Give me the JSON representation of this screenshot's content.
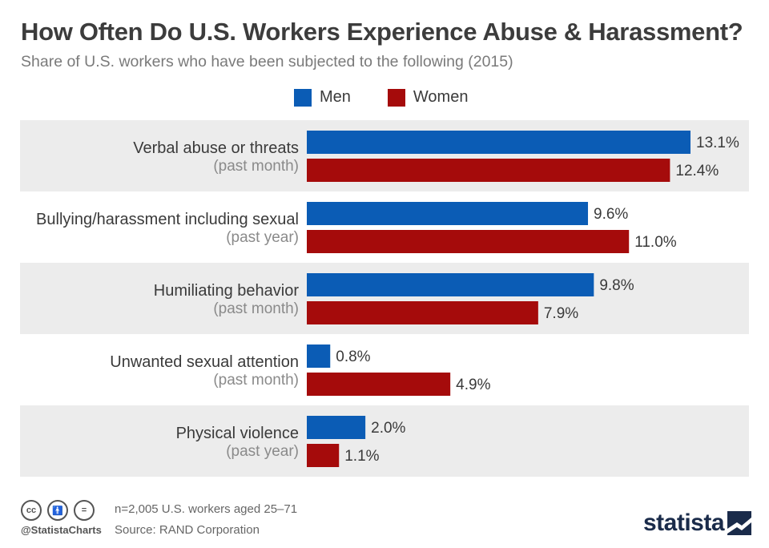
{
  "header": {
    "title": "How Often Do U.S. Workers Experience Abuse & Harassment?",
    "subtitle": "Share of U.S. workers who have been subjected to the following (2015)"
  },
  "legend": {
    "items": [
      {
        "label": "Men",
        "color": "#0b5cb5"
      },
      {
        "label": "Women",
        "color": "#a50b0b"
      }
    ]
  },
  "chart_data": {
    "type": "bar",
    "orientation": "horizontal",
    "title": "How Often Do U.S. Workers Experience Abuse & Harassment?",
    "subtitle": "Share of U.S. workers who have been subjected to the following (2015)",
    "categories": [
      {
        "label": "Verbal abuse or threats",
        "period": "(past month)"
      },
      {
        "label": "Bullying/harassment including sexual",
        "period": "(past year)"
      },
      {
        "label": "Humiliating behavior",
        "period": "(past month)"
      },
      {
        "label": "Unwanted sexual attention",
        "period": "(past month)"
      },
      {
        "label": "Physical violence",
        "period": "(past year)"
      }
    ],
    "series": [
      {
        "name": "Men",
        "color": "#0b5cb5",
        "values": [
          13.1,
          9.6,
          9.8,
          0.8,
          2.0
        ],
        "labels": [
          "13.1%",
          "9.6%",
          "9.8%",
          "0.8%",
          "2.0%"
        ]
      },
      {
        "name": "Women",
        "color": "#a50b0b",
        "values": [
          12.4,
          11.0,
          7.9,
          4.9,
          1.1
        ],
        "labels": [
          "12.4%",
          "11.0%",
          "7.9%",
          "4.9%",
          "1.1%"
        ]
      }
    ],
    "xlim": [
      0,
      13.1
    ],
    "unit": "%",
    "grid": false,
    "legend_position": "top"
  },
  "footer": {
    "icons": [
      "cc-icon",
      "by-icon",
      "nd-icon"
    ],
    "handle": "@StatistaCharts",
    "note": "n=2,005 U.S. workers aged 25–71",
    "source": "Source: RAND Corporation",
    "brand": "statista"
  }
}
